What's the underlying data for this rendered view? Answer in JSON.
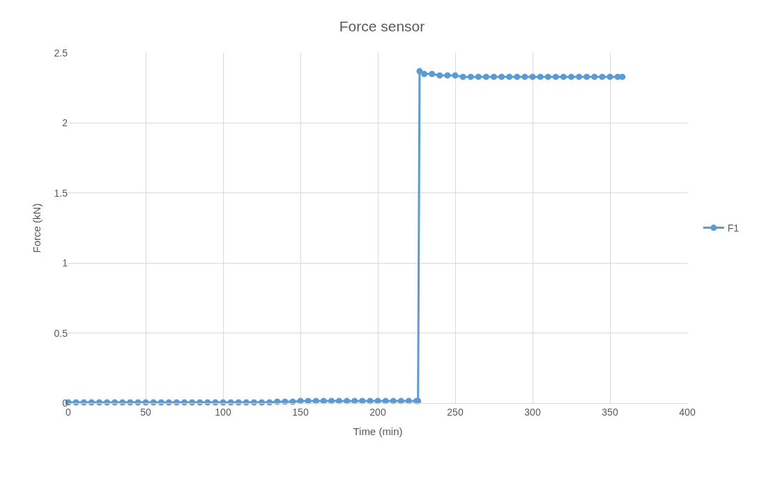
{
  "chart_data": {
    "type": "line",
    "title": "Force sensor",
    "xlabel": "Time (min)",
    "ylabel": "Force (kN)",
    "xlim": [
      0,
      400
    ],
    "xticks": [
      0,
      50,
      100,
      150,
      200,
      250,
      300,
      350,
      400
    ],
    "ylim": [
      0,
      2.5
    ],
    "yticks": [
      0,
      0.5,
      1,
      1.5,
      2,
      2.5
    ],
    "grid": true,
    "legend": "right",
    "marker": "circle",
    "line_style": "solid",
    "series": [
      {
        "name": "F1",
        "color": "#5b9bd5",
        "x": [
          0,
          5,
          10,
          15,
          20,
          25,
          30,
          35,
          40,
          45,
          50,
          55,
          60,
          65,
          70,
          75,
          80,
          85,
          90,
          95,
          100,
          105,
          110,
          115,
          120,
          125,
          130,
          135,
          140,
          145,
          150,
          155,
          160,
          165,
          170,
          175,
          180,
          185,
          190,
          195,
          200,
          205,
          210,
          215,
          220,
          225,
          226,
          227,
          230,
          235,
          240,
          245,
          250,
          255,
          260,
          265,
          270,
          275,
          280,
          285,
          290,
          295,
          300,
          305,
          310,
          315,
          320,
          325,
          330,
          335,
          340,
          345,
          350,
          355,
          358
        ],
        "values": [
          0.005,
          0.005,
          0.005,
          0.005,
          0.005,
          0.005,
          0.005,
          0.005,
          0.005,
          0.005,
          0.005,
          0.005,
          0.005,
          0.005,
          0.005,
          0.005,
          0.005,
          0.005,
          0.005,
          0.005,
          0.005,
          0.005,
          0.005,
          0.005,
          0.005,
          0.005,
          0.005,
          0.01,
          0.01,
          0.01,
          0.015,
          0.015,
          0.015,
          0.015,
          0.015,
          0.015,
          0.015,
          0.015,
          0.015,
          0.015,
          0.015,
          0.015,
          0.015,
          0.015,
          0.015,
          0.015,
          0.015,
          2.37,
          2.35,
          2.35,
          2.34,
          2.34,
          2.34,
          2.33,
          2.33,
          2.33,
          2.33,
          2.33,
          2.33,
          2.33,
          2.33,
          2.33,
          2.33,
          2.33,
          2.33,
          2.33,
          2.33,
          2.33,
          2.33,
          2.33,
          2.33,
          2.33,
          2.33,
          2.33,
          2.33
        ]
      }
    ]
  }
}
